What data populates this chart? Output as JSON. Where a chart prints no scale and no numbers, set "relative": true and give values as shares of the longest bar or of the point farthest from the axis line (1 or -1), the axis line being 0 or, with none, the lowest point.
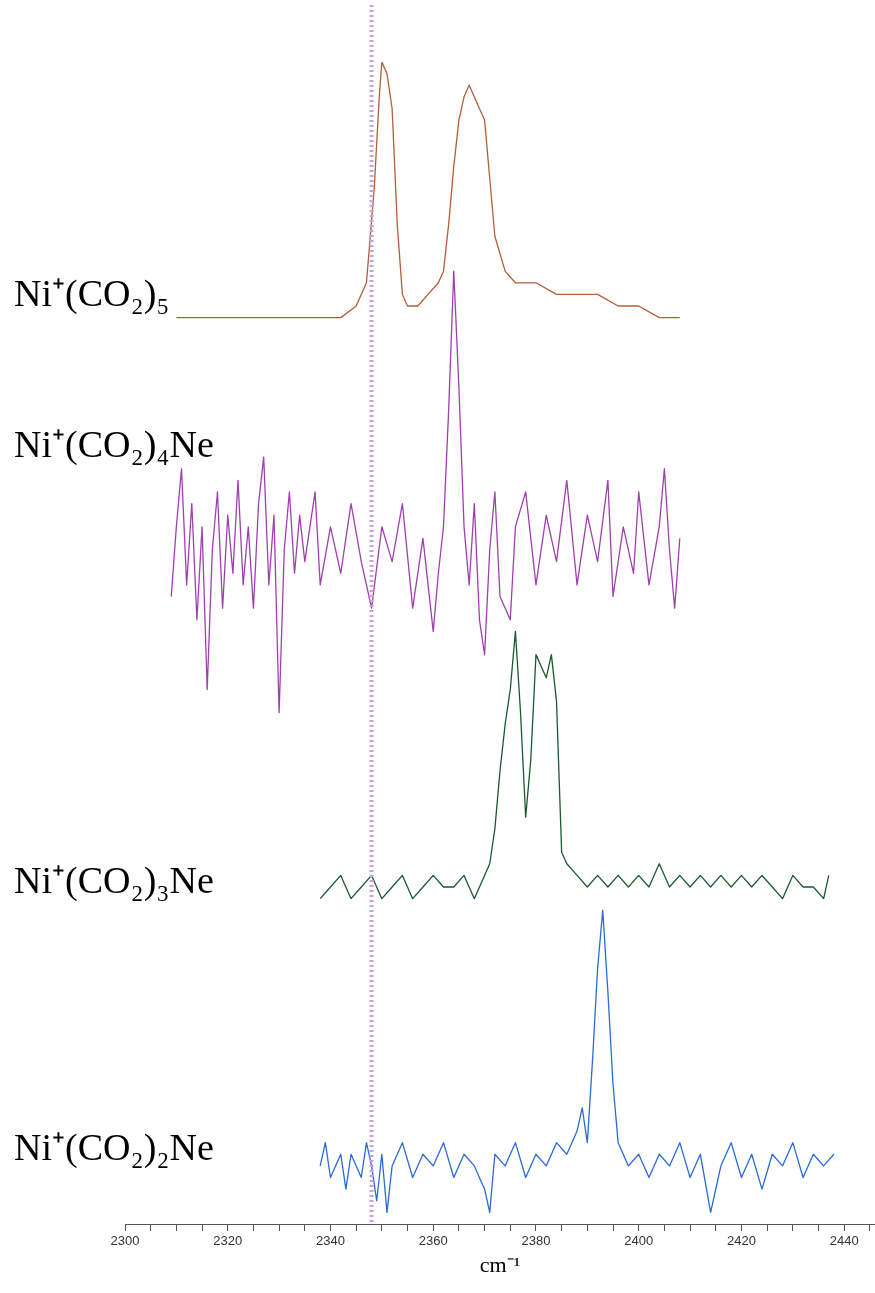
{
  "chart_data": {
    "type": "line",
    "relative": true,
    "xlabel": "cm⁻¹",
    "xlim": [
      2300,
      2446
    ],
    "xticks": [
      2300,
      {
        "value": 2305,
        "label": null
      },
      {
        "value": 2310,
        "label": null
      },
      {
        "value": 2315,
        "label": null
      },
      2320,
      {
        "value": 2325,
        "label": null
      },
      {
        "value": 2330,
        "label": null
      },
      {
        "value": 2335,
        "label": null
      },
      2340,
      {
        "value": 2345,
        "label": null
      },
      {
        "value": 2350,
        "label": null
      },
      {
        "value": 2355,
        "label": null
      },
      2360,
      {
        "value": 2365,
        "label": null
      },
      {
        "value": 2370,
        "label": null
      },
      {
        "value": 2375,
        "label": null
      },
      2380,
      {
        "value": 2385,
        "label": null
      },
      {
        "value": 2390,
        "label": null
      },
      {
        "value": 2395,
        "label": null
      },
      2400,
      {
        "value": 2405,
        "label": null
      },
      {
        "value": 2410,
        "label": null
      },
      {
        "value": 2415,
        "label": null
      },
      2420,
      {
        "value": 2425,
        "label": null
      },
      {
        "value": 2430,
        "label": null
      },
      {
        "value": 2435,
        "label": null
      },
      2440,
      {
        "value": 2445,
        "label": null
      }
    ],
    "grid": false,
    "legend": false,
    "marker": "none",
    "line_style": "solid",
    "ref_lines": [
      {
        "axis": "x",
        "value": 2348,
        "color": "#c8a0e0",
        "line_style": "dotted"
      }
    ],
    "series": [
      {
        "name": "Ni⁺(CO₂)₅",
        "color": "#b0603a",
        "x": [
          2310,
          2314,
          2318,
          2322,
          2326,
          2330,
          2334,
          2338,
          2342,
          2345,
          2347,
          2348.5,
          2349.5,
          2350,
          2351,
          2352,
          2353,
          2354,
          2355,
          2357,
          2359,
          2361,
          2362,
          2363,
          2364,
          2365,
          2366,
          2367,
          2368,
          2369,
          2370,
          2371,
          2372,
          2374,
          2376,
          2380,
          2384,
          2388,
          2392,
          2396,
          2400,
          2404,
          2408
        ],
        "values": [
          0.78,
          0.78,
          0.78,
          0.78,
          0.78,
          0.78,
          0.78,
          0.78,
          0.78,
          0.79,
          0.81,
          0.89,
          0.97,
          1,
          0.99,
          0.96,
          0.86,
          0.8,
          0.79,
          0.79,
          0.8,
          0.81,
          0.82,
          0.86,
          0.91,
          0.95,
          0.97,
          0.98,
          0.97,
          0.96,
          0.95,
          0.9,
          0.85,
          0.82,
          0.81,
          0.81,
          0.8,
          0.8,
          0.8,
          0.79,
          0.79,
          0.78,
          0.78
        ]
      },
      {
        "name": "Ni⁺(CO₂)₄Ne",
        "color": "#a040b0",
        "x": [
          2309,
          2310,
          2311,
          2312,
          2313,
          2314,
          2315,
          2316,
          2317,
          2318,
          2319,
          2320,
          2321,
          2322,
          2323,
          2324,
          2325,
          2326,
          2327,
          2328,
          2329,
          2330,
          2331,
          2332,
          2333,
          2334,
          2335,
          2337,
          2338,
          2340,
          2342,
          2344,
          2346,
          2348,
          2350,
          2352,
          2354,
          2356,
          2358,
          2360,
          2361,
          2362,
          2363,
          2364,
          2365,
          2366,
          2367,
          2368,
          2369,
          2370,
          2371,
          2372,
          2373,
          2375,
          2376,
          2378,
          2380,
          2382,
          2384,
          2386,
          2388,
          2390,
          2392,
          2394,
          2395,
          2397,
          2399,
          2400,
          2402,
          2404,
          2405,
          2406,
          2407,
          2408
        ],
        "values": [
          0.54,
          0.6,
          0.65,
          0.55,
          0.62,
          0.52,
          0.6,
          0.46,
          0.58,
          0.63,
          0.53,
          0.61,
          0.56,
          0.64,
          0.55,
          0.6,
          0.53,
          0.62,
          0.66,
          0.55,
          0.61,
          0.44,
          0.58,
          0.63,
          0.56,
          0.61,
          0.57,
          0.63,
          0.55,
          0.6,
          0.56,
          0.62,
          0.57,
          0.53,
          0.6,
          0.57,
          0.62,
          0.53,
          0.59,
          0.51,
          0.56,
          0.6,
          0.7,
          0.82,
          0.72,
          0.6,
          0.55,
          0.62,
          0.52,
          0.49,
          0.58,
          0.63,
          0.54,
          0.52,
          0.6,
          0.63,
          0.55,
          0.61,
          0.57,
          0.64,
          0.55,
          0.61,
          0.57,
          0.64,
          0.54,
          0.6,
          0.56,
          0.63,
          0.55,
          0.6,
          0.65,
          0.58,
          0.53,
          0.59
        ]
      },
      {
        "name": "Ni⁺(CO₂)₃Ne",
        "color": "#1a5a30",
        "x": [
          2338,
          2340,
          2342,
          2344,
          2346,
          2348,
          2350,
          2352,
          2354,
          2356,
          2358,
          2360,
          2362,
          2364,
          2366,
          2368,
          2370,
          2371,
          2372,
          2373,
          2374,
          2375,
          2376,
          2377,
          2378,
          2379,
          2380,
          2381,
          2382,
          2383,
          2384,
          2385,
          2386,
          2388,
          2390,
          2392,
          2394,
          2396,
          2398,
          2400,
          2402,
          2404,
          2406,
          2408,
          2410,
          2412,
          2414,
          2416,
          2418,
          2420,
          2422,
          2424,
          2426,
          2428,
          2430,
          2432,
          2434,
          2436,
          2437
        ],
        "values": [
          0.28,
          0.29,
          0.3,
          0.28,
          0.29,
          0.3,
          0.28,
          0.29,
          0.3,
          0.28,
          0.29,
          0.3,
          0.29,
          0.29,
          0.3,
          0.28,
          0.3,
          0.31,
          0.34,
          0.39,
          0.43,
          0.46,
          0.51,
          0.44,
          0.35,
          0.4,
          0.49,
          0.48,
          0.47,
          0.49,
          0.45,
          0.32,
          0.31,
          0.3,
          0.29,
          0.3,
          0.29,
          0.3,
          0.29,
          0.3,
          0.29,
          0.31,
          0.29,
          0.3,
          0.29,
          0.3,
          0.29,
          0.3,
          0.29,
          0.3,
          0.29,
          0.3,
          0.29,
          0.28,
          0.3,
          0.29,
          0.29,
          0.28,
          0.3
        ]
      },
      {
        "name": "Ni⁺(CO₂)₂Ne",
        "color": "#2a6ad8",
        "x": [
          2338,
          2339,
          2340,
          2342,
          2343,
          2344,
          2346,
          2347,
          2348,
          2349,
          2350,
          2351,
          2352,
          2354,
          2356,
          2358,
          2360,
          2362,
          2364,
          2366,
          2368,
          2370,
          2371,
          2372,
          2374,
          2376,
          2378,
          2380,
          2382,
          2384,
          2386,
          2388,
          2389,
          2390,
          2391,
          2392,
          2393,
          2394,
          2395,
          2396,
          2398,
          2400,
          2402,
          2404,
          2406,
          2408,
          2410,
          2412,
          2414,
          2416,
          2418,
          2420,
          2422,
          2424,
          2426,
          2428,
          2430,
          2432,
          2434,
          2436,
          2438
        ],
        "values": [
          0.05,
          0.07,
          0.04,
          0.06,
          0.03,
          0.06,
          0.04,
          0.07,
          0.05,
          0.02,
          0.06,
          0.01,
          0.05,
          0.07,
          0.04,
          0.06,
          0.05,
          0.07,
          0.04,
          0.06,
          0.05,
          0.03,
          0.01,
          0.06,
          0.05,
          0.07,
          0.04,
          0.06,
          0.05,
          0.07,
          0.06,
          0.08,
          0.1,
          0.07,
          0.14,
          0.22,
          0.27,
          0.2,
          0.12,
          0.07,
          0.05,
          0.06,
          0.04,
          0.06,
          0.05,
          0.07,
          0.04,
          0.06,
          0.01,
          0.05,
          0.07,
          0.04,
          0.06,
          0.03,
          0.06,
          0.05,
          0.07,
          0.04,
          0.06,
          0.05,
          0.06
        ]
      }
    ]
  }
}
